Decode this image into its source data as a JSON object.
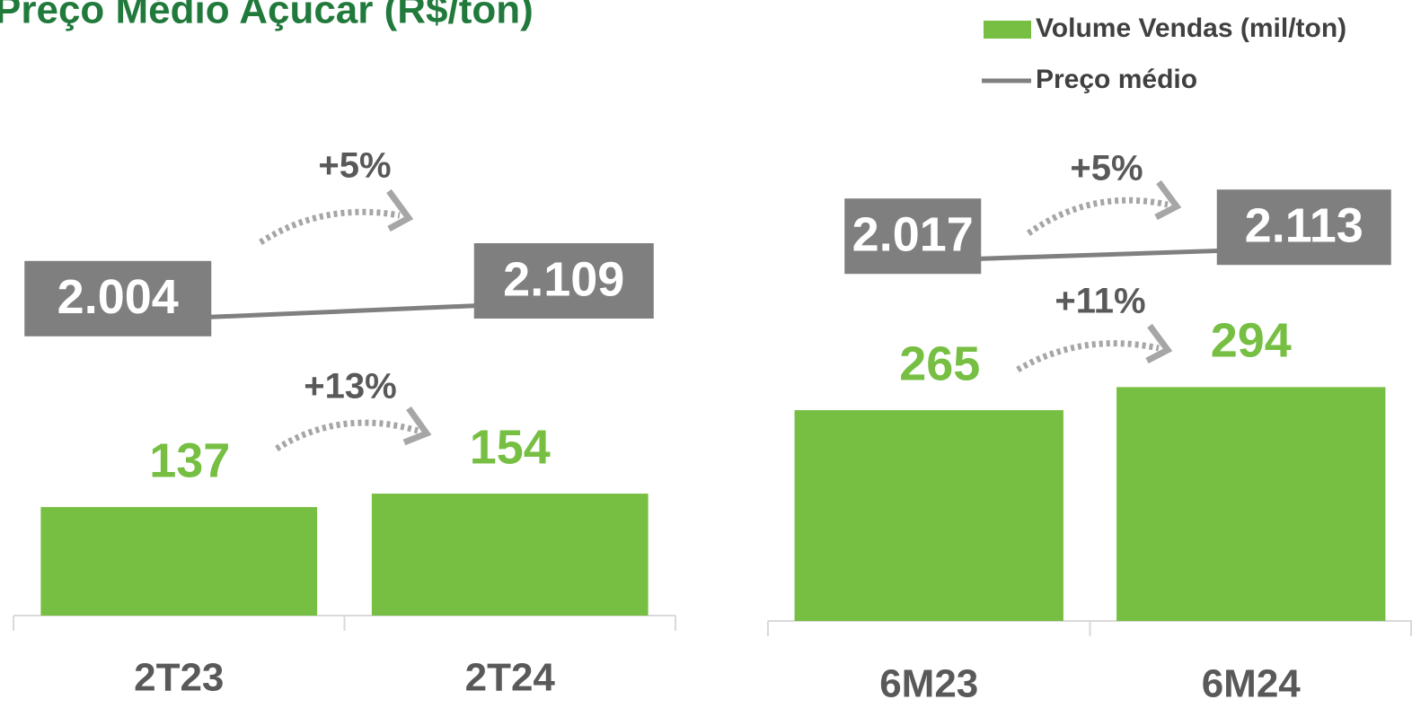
{
  "chart_data": [
    {
      "type": "bar",
      "title": "Preço Médio Açucar (R$/ton)",
      "categories": [
        "2T23",
        "2T24"
      ],
      "series": [
        {
          "name": "Volume Vendas (mil/ton)",
          "color": "#76bf43",
          "values": [
            137,
            154
          ]
        },
        {
          "name": "Preço médio",
          "color": "#808080",
          "type": "line",
          "axis": "y2",
          "values": [
            2004,
            2109
          ],
          "value_labels": [
            "2.004",
            "2.109"
          ]
        }
      ],
      "ylim": [
        0,
        630
      ],
      "y2lim": [
        -200,
        3500
      ],
      "annotations": [
        "+5%",
        "+13%"
      ]
    },
    {
      "type": "bar",
      "categories": [
        "6M23",
        "6M24"
      ],
      "series": [
        {
          "color": "#76bf43",
          "values": [
            265,
            294
          ]
        },
        {
          "color": "#808080",
          "type": "line",
          "axis": "y2",
          "values": [
            2017,
            2113
          ],
          "value_labels": [
            "2.017",
            "2.113"
          ]
        }
      ],
      "ylim": [
        0,
        634
      ],
      "y2lim": [
        -1200,
        3300
      ],
      "annotations": [
        "+5%",
        "+11%"
      ]
    }
  ]
}
